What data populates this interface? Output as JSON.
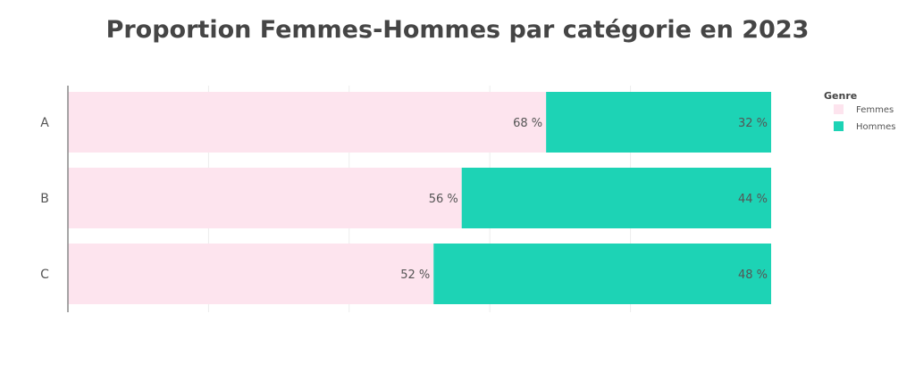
{
  "chart_data": {
    "type": "bar",
    "orientation": "horizontal",
    "stacked": true,
    "title": "Proportion Femmes-Hommes par catégorie en 2023",
    "categories": [
      "A",
      "B",
      "C"
    ],
    "series": [
      {
        "name": "Femmes",
        "values": [
          68,
          56,
          52
        ],
        "labels": [
          "68 %",
          "56 %",
          "52 %"
        ],
        "color": "#fde4ee"
      },
      {
        "name": "Hommes",
        "values": [
          32,
          44,
          48
        ],
        "labels": [
          "32 %",
          "44 %",
          "48 %"
        ],
        "color": "#1dd3b5"
      }
    ],
    "xlim": [
      0,
      100
    ],
    "grid": true,
    "legend": {
      "title": "Genre",
      "position": "top-right"
    }
  }
}
